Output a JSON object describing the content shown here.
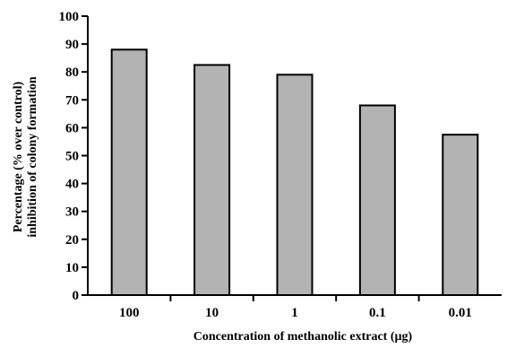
{
  "chart_data": {
    "type": "bar",
    "categories": [
      "100",
      "10",
      "1",
      "0.1",
      "0.01"
    ],
    "values": [
      88,
      82.5,
      79,
      68,
      57.5
    ],
    "xlabel": "Concentration of methanolic extract (µg)",
    "ylabel_line1": "Percentage (% over control)",
    "ylabel_line2": "inhibition of colony formation",
    "ylim": [
      0,
      100
    ],
    "yticks": [
      0,
      10,
      20,
      30,
      40,
      50,
      60,
      70,
      80,
      90,
      100
    ],
    "grid": false,
    "legend": "none",
    "bar_color": "#b3b3b3",
    "bar_edge_color": "#000000"
  }
}
